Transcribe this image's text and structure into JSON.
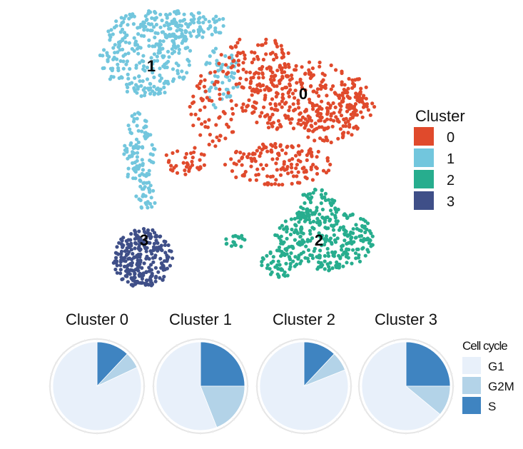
{
  "chart_data": [
    {
      "type": "scatter",
      "title": "",
      "xlabel": "",
      "ylabel": "",
      "grid": false,
      "legend": {
        "title": "Cluster",
        "placement": "right",
        "entries": [
          {
            "label": "0",
            "color": "#e04a2c"
          },
          {
            "label": "1",
            "color": "#72c6dd"
          },
          {
            "label": "2",
            "color": "#27ad8e"
          },
          {
            "label": "3",
            "color": "#3f4f88"
          }
        ]
      },
      "cluster_labels": [
        {
          "label": "0",
          "x": 425,
          "y": 133
        },
        {
          "label": "1",
          "x": 212,
          "y": 94
        },
        {
          "label": "2",
          "x": 447,
          "y": 338
        },
        {
          "label": "3",
          "x": 202,
          "y": 338
        }
      ],
      "series": [
        {
          "cluster": "0",
          "color": "#e04a2c",
          "count": 720,
          "regions": [
            [
              420,
              135,
              90,
              50,
              3
            ],
            [
              360,
              90,
              55,
              40,
              1.4
            ],
            [
              390,
              230,
              75,
              30,
              1.6
            ],
            [
              300,
              150,
              35,
              55,
              0.8
            ],
            [
              460,
              170,
              45,
              30,
              0.8
            ],
            [
              500,
              145,
              25,
              35,
              0.5
            ],
            [
              260,
              225,
              30,
              20,
              0.4
            ]
          ]
        },
        {
          "cluster": "1",
          "color": "#72c6dd",
          "count": 560,
          "regions": [
            [
              205,
              75,
              65,
              60,
              3
            ],
            [
              260,
              35,
              60,
              20,
              1
            ],
            [
              195,
              210,
              22,
              55,
              0.9
            ],
            [
              205,
              275,
              15,
              20,
              0.25
            ],
            [
              310,
              110,
              25,
              45,
              0.6
            ]
          ]
        },
        {
          "cluster": "2",
          "color": "#27ad8e",
          "count": 420,
          "regions": [
            [
              455,
              335,
              70,
              45,
              3
            ],
            [
              390,
              370,
              25,
              20,
              0.5
            ],
            [
              445,
              290,
              30,
              25,
              0.5
            ],
            [
              330,
              338,
              15,
              10,
              0.15
            ]
          ]
        },
        {
          "cluster": "3",
          "color": "#3f4f88",
          "count": 260,
          "regions": [
            [
              200,
              362,
              42,
              42,
              1
            ]
          ]
        }
      ]
    },
    {
      "type": "pie",
      "legend": {
        "title": "Cell cycle",
        "placement": "right",
        "entries": [
          {
            "label": "G1",
            "color": "#e8f0fa"
          },
          {
            "label": "G2M",
            "color": "#b3d3e8"
          },
          {
            "label": "S",
            "color": "#3f84c1"
          }
        ]
      },
      "categories": [
        "G1",
        "G2M",
        "S"
      ],
      "series": [
        {
          "name": "Cluster 0",
          "values": [
            0.82,
            0.06,
            0.12
          ]
        },
        {
          "name": "Cluster 1",
          "values": [
            0.56,
            0.19,
            0.25
          ]
        },
        {
          "name": "Cluster 2",
          "values": [
            0.81,
            0.07,
            0.12
          ]
        },
        {
          "name": "Cluster 3",
          "values": [
            0.64,
            0.11,
            0.25
          ]
        }
      ]
    }
  ]
}
